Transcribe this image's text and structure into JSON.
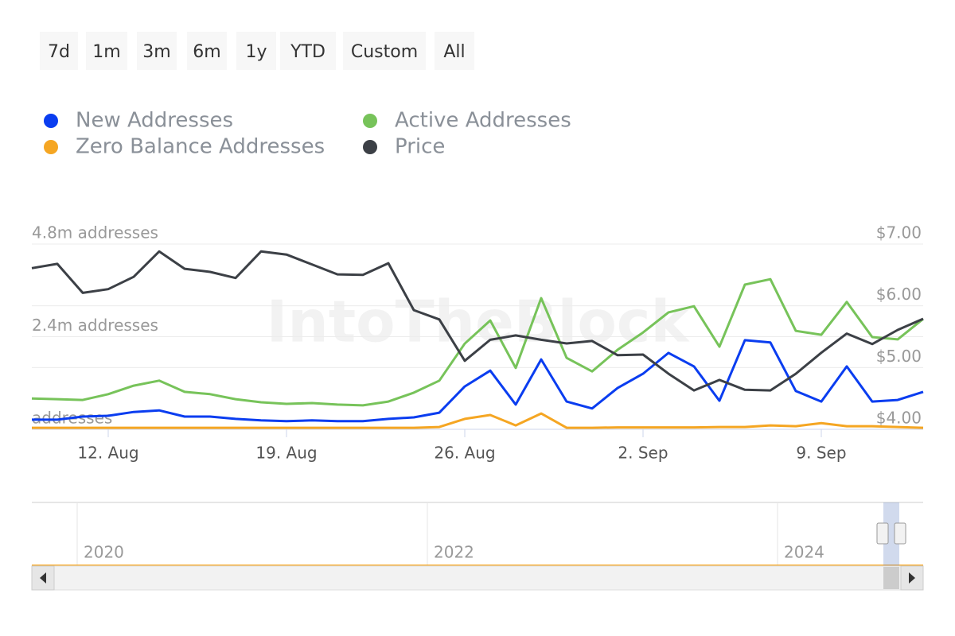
{
  "range_buttons": [
    "7d",
    "1m",
    "3m",
    "6m",
    "1y",
    "YTD",
    "Custom",
    "All"
  ],
  "watermark": "IntoTheBlock",
  "navigator": {
    "labels": [
      "2020",
      "2022",
      "2024"
    ]
  },
  "chart_data": {
    "type": "line",
    "categories": [
      null,
      null,
      null,
      "12. Aug",
      null,
      null,
      null,
      null,
      null,
      null,
      "19. Aug",
      null,
      null,
      null,
      null,
      null,
      null,
      "26. Aug",
      null,
      null,
      null,
      null,
      null,
      null,
      "2. Sep",
      null,
      null,
      null,
      null,
      null,
      null,
      "9. Sep",
      null,
      null,
      null,
      null
    ],
    "series": [
      {
        "name": "New Addresses",
        "color": "#0a3df0",
        "values": [
          250000,
          250000,
          330000,
          350000,
          450000,
          490000,
          330000,
          330000,
          270000,
          230000,
          210000,
          230000,
          210000,
          210000,
          270000,
          310000,
          430000,
          1110000,
          1520000,
          640000,
          1810000,
          720000,
          540000,
          1070000,
          1440000,
          1980000,
          1630000,
          740000,
          2310000,
          2250000,
          990000,
          720000,
          1630000,
          720000,
          760000,
          970000
        ]
      },
      {
        "name": "Active Addresses",
        "color": "#77c35a",
        "values": [
          800000,
          780000,
          760000,
          910000,
          1130000,
          1260000,
          970000,
          910000,
          780000,
          700000,
          660000,
          680000,
          640000,
          620000,
          720000,
          950000,
          1260000,
          2220000,
          2820000,
          1590000,
          3400000,
          1850000,
          1500000,
          2060000,
          2510000,
          3030000,
          3190000,
          2140000,
          3750000,
          3890000,
          2550000,
          2450000,
          3300000,
          2390000,
          2330000,
          2860000
        ]
      },
      {
        "name": "Zero Balance Addresses",
        "color": "#f5a623",
        "values": [
          40000,
          40000,
          40000,
          40000,
          40000,
          40000,
          40000,
          40000,
          40000,
          40000,
          40000,
          40000,
          40000,
          40000,
          40000,
          40000,
          60000,
          270000,
          370000,
          100000,
          410000,
          40000,
          40000,
          50000,
          50000,
          50000,
          50000,
          60000,
          60000,
          100000,
          80000,
          160000,
          80000,
          80000,
          60000,
          40000
        ]
      },
      {
        "name": "Price",
        "color": "#3c4046",
        "axis": "y2",
        "values": [
          6.61,
          6.68,
          6.21,
          6.27,
          6.47,
          6.88,
          6.6,
          6.55,
          6.45,
          6.88,
          6.83,
          6.67,
          6.51,
          6.5,
          6.69,
          5.93,
          5.78,
          5.11,
          5.45,
          5.52,
          5.45,
          5.39,
          5.43,
          5.2,
          5.21,
          4.9,
          4.63,
          4.8,
          4.64,
          4.63,
          4.9,
          5.24,
          5.55,
          5.38,
          5.61,
          5.79
        ]
      }
    ],
    "ylim": [
      0,
      4800000
    ],
    "yticks": [
      {
        "value": 0,
        "label": "addresses"
      },
      {
        "value": 2400000,
        "label": "2.4m addresses"
      },
      {
        "value": 4800000,
        "label": "4.8m addresses"
      }
    ],
    "y2lim": [
      4,
      7
    ],
    "y2ticks": [
      {
        "value": 4,
        "label": "$4.00"
      },
      {
        "value": 5,
        "label": "$5.00"
      },
      {
        "value": 6,
        "label": "$6.00"
      },
      {
        "value": 7,
        "label": "$7.00"
      }
    ],
    "grid": true,
    "legend_position": "top-left"
  }
}
